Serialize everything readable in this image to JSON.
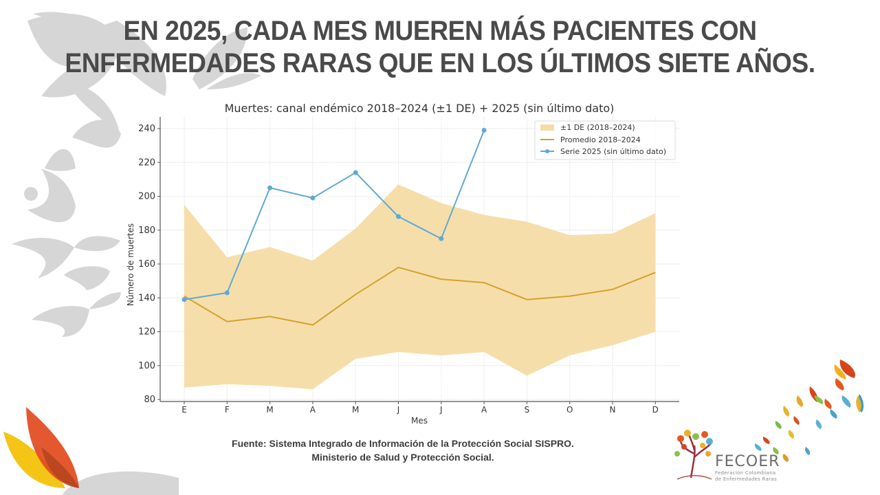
{
  "headline": {
    "line1": "EN 2025, CADA MES MUEREN MÁS PACIENTES CON",
    "line2": "ENFERMEDADES RARAS QUE EN LOS ÚLTIMOS SIETE AÑOS."
  },
  "source": {
    "line1": "Fuente: Sistema Integrado de Información de la Protección Social SISPRO.",
    "line2": "Ministerio de Salud y Protección Social."
  },
  "logo": {
    "name": "FECOER",
    "sub1": "Federación Colombiana",
    "sub2": "de Enfermedades Raras"
  },
  "colors": {
    "band": "#f5dca6",
    "mean": "#d4a12c",
    "series2025": "#5ea9d4",
    "headline": "#4a4a4a",
    "watermark": "#d6d6d6"
  },
  "chart_data": {
    "type": "line",
    "title": "Muertes: canal endémico 2018–2024 (±1 DE) + 2025 (sin último dato)",
    "xlabel": "Mes",
    "ylabel": "Número de muertes",
    "categories": [
      "E",
      "F",
      "M",
      "A",
      "M",
      "J",
      "J",
      "A",
      "S",
      "O",
      "N",
      "D"
    ],
    "ylim": [
      80,
      242
    ],
    "yticks": [
      80,
      100,
      120,
      140,
      160,
      180,
      200,
      220,
      240
    ],
    "grid": true,
    "legend_position": "top-right",
    "band": {
      "name": "±1 DE (2018–2024)",
      "upper": [
        195,
        164,
        170,
        162,
        181,
        207,
        196,
        189,
        185,
        177,
        178,
        190
      ],
      "lower": [
        87,
        89,
        88,
        86,
        104,
        108,
        106,
        108,
        94,
        106,
        112,
        120
      ]
    },
    "series": [
      {
        "name": "Promedio 2018–2024",
        "values": [
          141,
          126,
          129,
          124,
          142,
          158,
          151,
          149,
          139,
          141,
          145,
          155
        ]
      },
      {
        "name": "Serie 2025 (sin último dato)",
        "values": [
          139,
          143,
          205,
          199,
          214,
          188,
          175,
          239
        ]
      }
    ]
  }
}
